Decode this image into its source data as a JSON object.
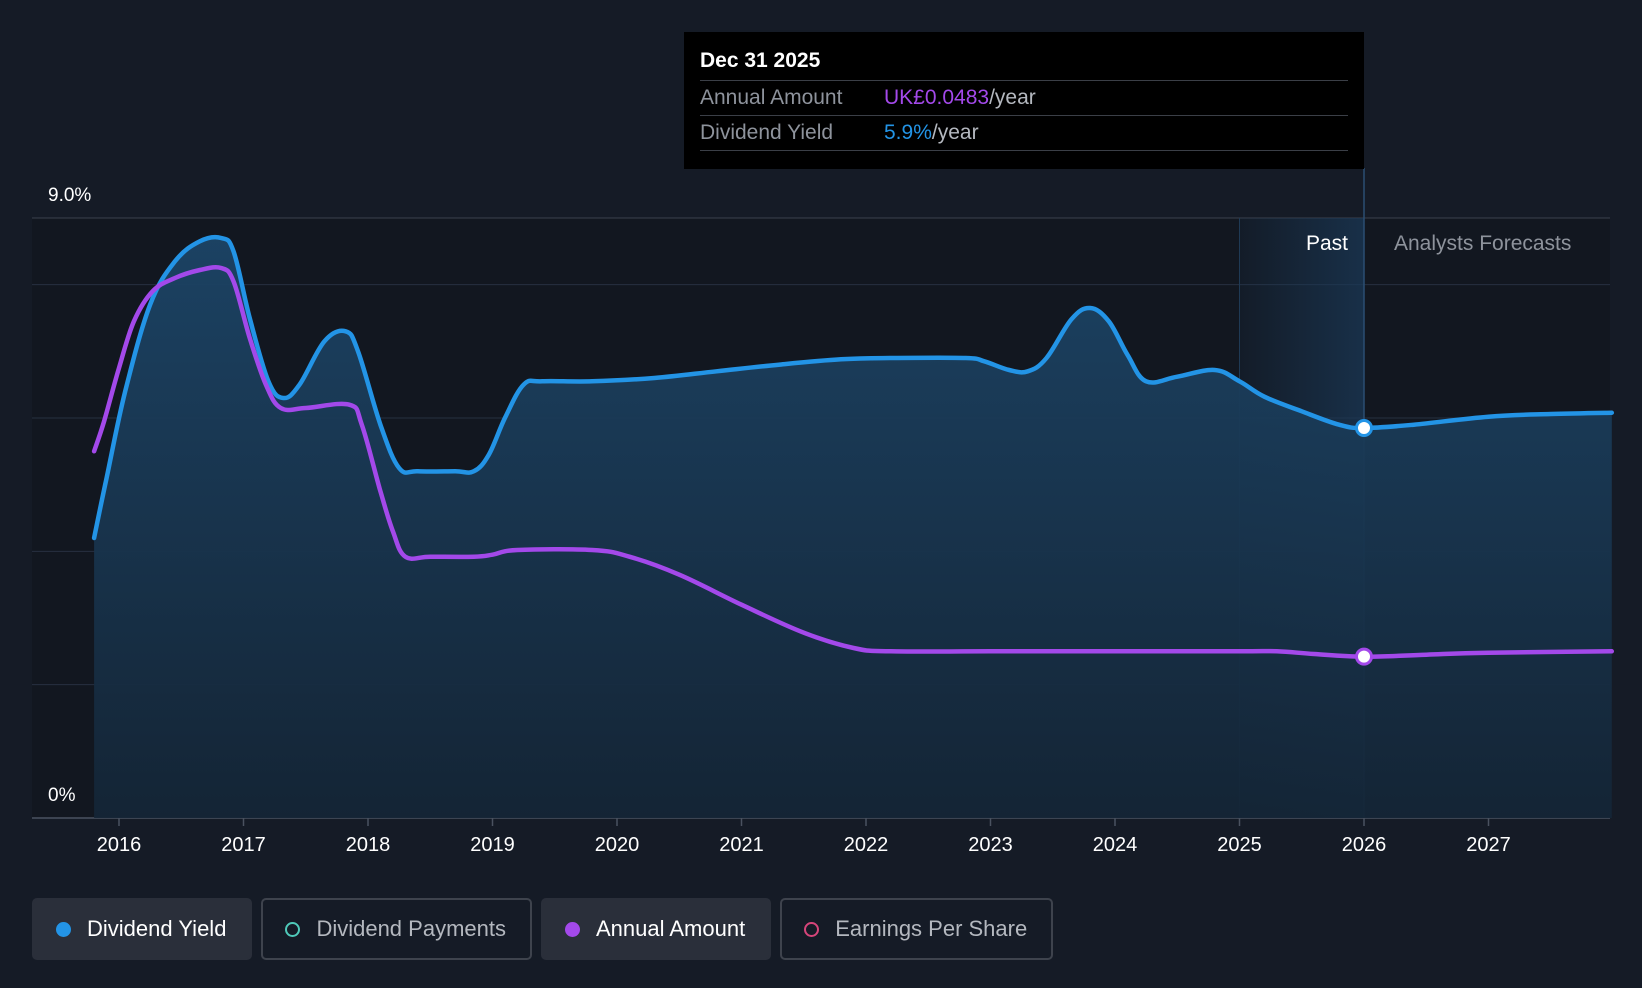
{
  "chart_data": {
    "type": "area",
    "x_axis": {
      "range": [
        2015.8,
        2027.99
      ],
      "ticks": [
        {
          "value": 2016,
          "label": "2016"
        },
        {
          "value": 2017,
          "label": "2017"
        },
        {
          "value": 2018,
          "label": "2018"
        },
        {
          "value": 2019,
          "label": "2019"
        },
        {
          "value": 2020,
          "label": "2020"
        },
        {
          "value": 2021,
          "label": "2021"
        },
        {
          "value": 2022,
          "label": "2022"
        },
        {
          "value": 2023,
          "label": "2023"
        },
        {
          "value": 2024,
          "label": "2024"
        },
        {
          "value": 2025,
          "label": "2025"
        },
        {
          "value": 2026,
          "label": "2026"
        },
        {
          "value": 2027,
          "label": "2027"
        }
      ]
    },
    "y_axis": {
      "range": [
        0,
        9.0
      ],
      "labels": [
        {
          "value": 9.0,
          "label": "9.0%"
        },
        {
          "value": 0,
          "label": "0%"
        }
      ],
      "gridlines": [
        0,
        2,
        4,
        6,
        8,
        9
      ]
    },
    "regions": {
      "past_label": "Past",
      "forecast_label": "Analysts Forecasts",
      "forecast_start": 2026.0,
      "shade_start": 2025.0
    },
    "series": [
      {
        "name": "Dividend Yield",
        "color": "#2394e6",
        "fill": true,
        "unit": "%",
        "points": [
          [
            2015.8,
            4.2
          ],
          [
            2015.9,
            5.1
          ],
          [
            2016.05,
            6.4
          ],
          [
            2016.25,
            7.7
          ],
          [
            2016.45,
            8.35
          ],
          [
            2016.65,
            8.65
          ],
          [
            2016.82,
            8.7
          ],
          [
            2016.92,
            8.5
          ],
          [
            2017.05,
            7.5
          ],
          [
            2017.2,
            6.55
          ],
          [
            2017.32,
            6.3
          ],
          [
            2017.45,
            6.5
          ],
          [
            2017.65,
            7.15
          ],
          [
            2017.82,
            7.3
          ],
          [
            2017.92,
            7.0
          ],
          [
            2018.1,
            5.9
          ],
          [
            2018.25,
            5.25
          ],
          [
            2018.4,
            5.2
          ],
          [
            2018.7,
            5.2
          ],
          [
            2018.85,
            5.2
          ],
          [
            2018.97,
            5.45
          ],
          [
            2019.1,
            6.0
          ],
          [
            2019.25,
            6.5
          ],
          [
            2019.4,
            6.55
          ],
          [
            2019.8,
            6.55
          ],
          [
            2020.3,
            6.6
          ],
          [
            2020.8,
            6.7
          ],
          [
            2021.3,
            6.8
          ],
          [
            2021.8,
            6.88
          ],
          [
            2022.2,
            6.9
          ],
          [
            2022.8,
            6.9
          ],
          [
            2022.95,
            6.85
          ],
          [
            2023.15,
            6.72
          ],
          [
            2023.3,
            6.7
          ],
          [
            2023.45,
            6.9
          ],
          [
            2023.65,
            7.48
          ],
          [
            2023.8,
            7.65
          ],
          [
            2023.95,
            7.45
          ],
          [
            2024.1,
            6.95
          ],
          [
            2024.25,
            6.55
          ],
          [
            2024.5,
            6.62
          ],
          [
            2024.8,
            6.72
          ],
          [
            2025.0,
            6.55
          ],
          [
            2025.2,
            6.32
          ],
          [
            2025.5,
            6.1
          ],
          [
            2025.8,
            5.9
          ],
          [
            2026.0,
            5.85
          ],
          [
            2026.4,
            5.9
          ],
          [
            2027.0,
            6.02
          ],
          [
            2027.5,
            6.06
          ],
          [
            2027.99,
            6.08
          ]
        ]
      },
      {
        "name": "Annual Amount",
        "color": "#a349ea",
        "fill": false,
        "unit": "%",
        "points": [
          [
            2015.8,
            5.5
          ],
          [
            2015.88,
            5.95
          ],
          [
            2016.0,
            6.75
          ],
          [
            2016.12,
            7.45
          ],
          [
            2016.27,
            7.9
          ],
          [
            2016.45,
            8.1
          ],
          [
            2016.65,
            8.22
          ],
          [
            2016.82,
            8.25
          ],
          [
            2016.92,
            8.05
          ],
          [
            2017.05,
            7.2
          ],
          [
            2017.18,
            6.5
          ],
          [
            2017.3,
            6.15
          ],
          [
            2017.5,
            6.15
          ],
          [
            2017.85,
            6.2
          ],
          [
            2017.95,
            5.9
          ],
          [
            2018.1,
            4.9
          ],
          [
            2018.2,
            4.3
          ],
          [
            2018.3,
            3.92
          ],
          [
            2018.5,
            3.92
          ],
          [
            2018.85,
            3.92
          ],
          [
            2019.0,
            3.95
          ],
          [
            2019.2,
            4.02
          ],
          [
            2019.8,
            4.02
          ],
          [
            2020.1,
            3.92
          ],
          [
            2020.5,
            3.65
          ],
          [
            2021.0,
            3.2
          ],
          [
            2021.5,
            2.78
          ],
          [
            2021.9,
            2.55
          ],
          [
            2022.2,
            2.5
          ],
          [
            2023.0,
            2.5
          ],
          [
            2024.0,
            2.5
          ],
          [
            2025.0,
            2.5
          ],
          [
            2025.3,
            2.5
          ],
          [
            2025.6,
            2.46
          ],
          [
            2026.0,
            2.42
          ],
          [
            2026.5,
            2.45
          ],
          [
            2027.0,
            2.48
          ],
          [
            2027.99,
            2.5
          ]
        ]
      }
    ],
    "highlight_x": 2026.0
  },
  "tooltip": {
    "date": "Dec 31 2025",
    "rows": [
      {
        "key": "Annual Amount",
        "value": "UK£0.0483",
        "suffix": "/year",
        "color": "#a349ea"
      },
      {
        "key": "Dividend Yield",
        "value": "5.9%",
        "suffix": "/year",
        "color": "#2394e6"
      }
    ]
  },
  "legend": [
    {
      "label": "Dividend Yield",
      "color": "#2394e6",
      "active": true
    },
    {
      "label": "Dividend Payments",
      "color": "#4fc9b9",
      "active": false
    },
    {
      "label": "Annual Amount",
      "color": "#a349ea",
      "active": true
    },
    {
      "label": "Earnings Per Share",
      "color": "#d6457a",
      "active": false
    }
  ]
}
